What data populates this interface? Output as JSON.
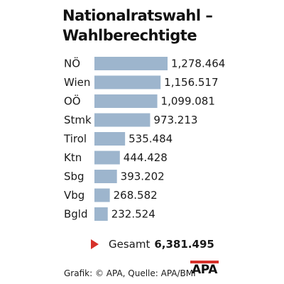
{
  "chart_data": {
    "type": "bar",
    "orientation": "horizontal",
    "title": "Nationalratswahl – Wahlberechtigte",
    "title_lines": [
      "Nationalratswahl –",
      "Wahlberechtigte"
    ],
    "categories": [
      "NÖ",
      "Wien",
      "OÖ",
      "Stmk",
      "Tirol",
      "Ktn",
      "Sbg",
      "Vbg",
      "Bgld"
    ],
    "values": [
      1278464,
      1156517,
      1099081,
      973213,
      535484,
      444428,
      393202,
      268582,
      232524
    ],
    "value_labels": [
      "1,278.464",
      "1,156.517",
      "1,099.081",
      "973.213",
      "535.484",
      "444.428",
      "393.202",
      "268.582",
      "232.524"
    ],
    "xlim": [
      0,
      1278464
    ],
    "grid": false,
    "legend": "none",
    "bar_color": "#9db5cd",
    "total": {
      "label": "Gesamt",
      "value": "6,381.495"
    }
  },
  "footer": {
    "source": "Grafik: © APA, Quelle: APA/BMI",
    "logo_text": "APA"
  },
  "colors": {
    "accent": "#d6312a",
    "bar": "#9db5cd",
    "text": "#1a1a1a"
  }
}
